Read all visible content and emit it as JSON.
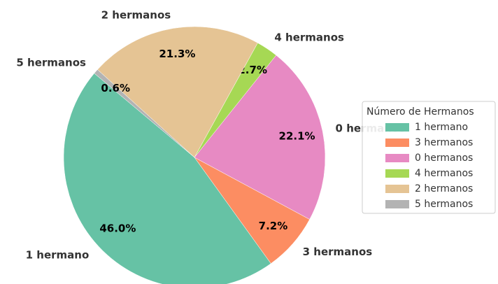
{
  "chart_data": {
    "type": "pie",
    "categories": [
      "1 hermano",
      "3 hermanos",
      "0 hermanos",
      "4 hermanos",
      "2 hermanos",
      "5 hermanos"
    ],
    "values": [
      46.0,
      7.2,
      22.1,
      2.7,
      21.3,
      0.6
    ],
    "value_labels": [
      "46.0%",
      "7.2%",
      "22.1%",
      "2.7%",
      "21.3%",
      "0.6%"
    ],
    "colors": [
      "#66c2a5",
      "#fc8d62",
      "#e78ac3",
      "#a6d854",
      "#e5c494",
      "#b3b3b3"
    ],
    "legend_title": "Número de Hermanos"
  }
}
